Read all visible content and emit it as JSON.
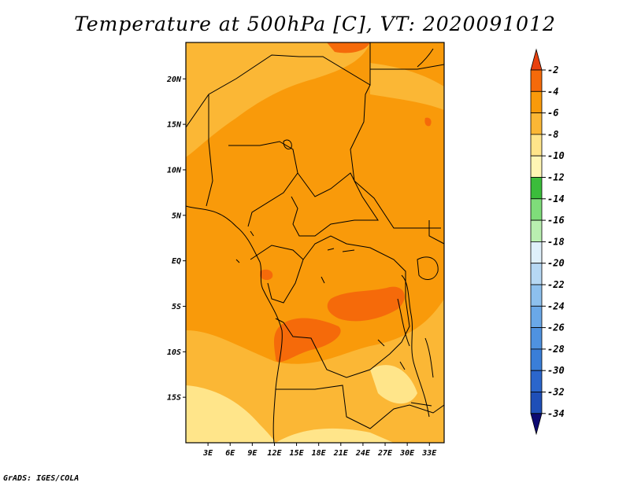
{
  "title": "Temperature at 500hPa [C], VT: 2020091012",
  "credit": "GrADS: IGES/COLA",
  "chart_data": {
    "type": "heatmap",
    "title": "Temperature at 500hPa [C], VT: 2020091012",
    "variable": "Temperature at 500hPa",
    "units": "C",
    "valid_time": "2020091012",
    "xlim": [
      0,
      35
    ],
    "ylim": [
      -20,
      24
    ],
    "x_ticks": [
      {
        "value": 3,
        "label": "3E"
      },
      {
        "value": 6,
        "label": "6E"
      },
      {
        "value": 9,
        "label": "9E"
      },
      {
        "value": 12,
        "label": "12E"
      },
      {
        "value": 15,
        "label": "15E"
      },
      {
        "value": 18,
        "label": "18E"
      },
      {
        "value": 21,
        "label": "21E"
      },
      {
        "value": 24,
        "label": "24E"
      },
      {
        "value": 27,
        "label": "27E"
      },
      {
        "value": 30,
        "label": "30E"
      },
      {
        "value": 33,
        "label": "33E"
      }
    ],
    "y_ticks": [
      {
        "value": 20,
        "label": "20N"
      },
      {
        "value": 15,
        "label": "15N"
      },
      {
        "value": 10,
        "label": "10N"
      },
      {
        "value": 5,
        "label": "5N"
      },
      {
        "value": 0,
        "label": "EQ"
      },
      {
        "value": -5,
        "label": "5S"
      },
      {
        "value": -10,
        "label": "10S"
      },
      {
        "value": -15,
        "label": "15S"
      }
    ],
    "levels": [
      -34,
      -32,
      -30,
      -28,
      -26,
      -24,
      -22,
      -20,
      -18,
      -16,
      -14,
      -12,
      -10,
      -8,
      -6,
      -4,
      -2
    ],
    "colorbar_labels": [
      "-2",
      "-4",
      "-6",
      "-8",
      "-10",
      "-12",
      "-14",
      "-16",
      "-18",
      "-20",
      "-22",
      "-24",
      "-26",
      "-28",
      "-30",
      "-32",
      "-34"
    ],
    "colors": [
      "#0d0a72",
      "#1f4fb8",
      "#2b66cc",
      "#3a7ed8",
      "#4f92e0",
      "#6aa8e8",
      "#8dc0ee",
      "#b6d8f4",
      "#dff0fb",
      "#b9efb0",
      "#7fdd7a",
      "#3bbd3b",
      "#fff6b4",
      "#ffe58a",
      "#fbb735",
      "#f99a0a",
      "#f56a0a",
      "#e8410f"
    ],
    "dominant_range": [
      -6,
      -4
    ],
    "warm_patches_range": [
      -4,
      -2
    ],
    "cool_south_range": [
      -10,
      -6
    ],
    "map_regions": [
      {
        "name": "far-south-cool",
        "range": "-10 to -8",
        "lon": [
          0,
          16
        ],
        "lat": [
          -20,
          -16
        ]
      },
      {
        "name": "south-cool",
        "range": "-8 to -6",
        "lon": [
          0,
          35
        ],
        "lat": [
          -20,
          -8
        ]
      },
      {
        "name": "north-cool",
        "range": "-8 to -6",
        "lon": [
          0,
          23
        ],
        "lat": [
          10,
          22
        ]
      },
      {
        "name": "central-warm",
        "range": "-4 to -2",
        "lon": [
          15,
          21
        ],
        "lat": [
          -9,
          -7
        ]
      },
      {
        "name": "east-warm",
        "range": "-4 to -2",
        "lon": [
          19,
          27
        ],
        "lat": [
          -6,
          -3
        ]
      },
      {
        "name": "top-warm",
        "range": "-4 to -2",
        "lon": [
          17,
          24
        ],
        "lat": [
          23,
          24
        ]
      }
    ]
  }
}
